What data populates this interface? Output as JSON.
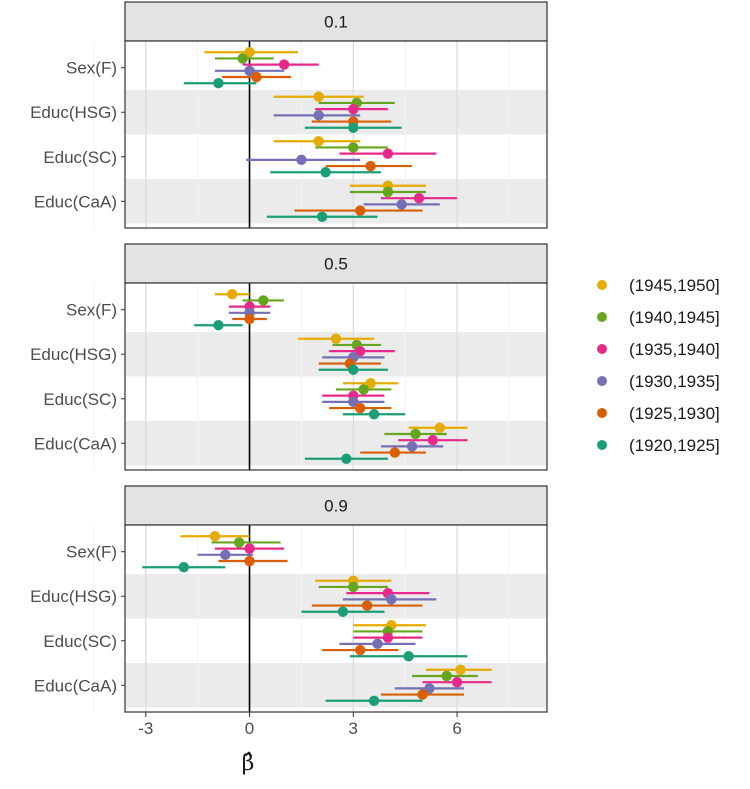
{
  "chart_data": {
    "type": "forest",
    "xlabel": "β̂",
    "x_ticks": [
      -3,
      0,
      3,
      6
    ],
    "xlim": [
      -3.6,
      8.6
    ],
    "categories": [
      "Sex(F)",
      "Educ(HSG)",
      "Educ(SC)",
      "Educ(CaA)"
    ],
    "legend": [
      {
        "label": "(1945,1950]",
        "color": "#e6ab02"
      },
      {
        "label": "(1940,1945]",
        "color": "#66a61e"
      },
      {
        "label": "(1935,1940]",
        "color": "#e7298a"
      },
      {
        "label": "(1930,1935]",
        "color": "#7570b3"
      },
      {
        "label": "(1925,1930]",
        "color": "#d95f02"
      },
      {
        "label": "(1920,1925]",
        "color": "#1b9e77"
      }
    ],
    "panels": [
      {
        "title": "0.1",
        "estimates": [
          [
            [
              0.0,
              -1.3,
              1.4
            ],
            [
              -0.2,
              -1.0,
              0.7
            ],
            [
              1.0,
              -0.2,
              2.0
            ],
            [
              0.0,
              -1.0,
              1.0
            ],
            [
              0.2,
              -0.8,
              1.2
            ],
            [
              -0.9,
              -1.9,
              0.2
            ]
          ],
          [
            [
              2.0,
              0.7,
              3.3
            ],
            [
              3.1,
              2.0,
              4.2
            ],
            [
              3.0,
              1.9,
              4.0
            ],
            [
              2.0,
              0.7,
              3.2
            ],
            [
              3.0,
              1.8,
              4.1
            ],
            [
              3.0,
              1.6,
              4.4
            ]
          ],
          [
            [
              2.0,
              0.7,
              3.2
            ],
            [
              3.0,
              1.9,
              4.0
            ],
            [
              4.0,
              2.6,
              5.4
            ],
            [
              1.5,
              -0.1,
              3.2
            ],
            [
              3.5,
              2.2,
              4.7
            ],
            [
              2.2,
              0.6,
              3.8
            ]
          ],
          [
            [
              4.0,
              2.9,
              5.1
            ],
            [
              4.0,
              2.9,
              5.1
            ],
            [
              4.9,
              3.8,
              6.0
            ],
            [
              4.4,
              3.3,
              5.5
            ],
            [
              3.2,
              1.3,
              5.0
            ],
            [
              2.1,
              0.5,
              3.7
            ]
          ]
        ]
      },
      {
        "title": "0.5",
        "estimates": [
          [
            [
              -0.5,
              -1.0,
              0.0
            ],
            [
              0.4,
              -0.2,
              1.0
            ],
            [
              0.0,
              -0.6,
              0.6
            ],
            [
              0.0,
              -0.6,
              0.6
            ],
            [
              0.0,
              -0.5,
              0.5
            ],
            [
              -0.9,
              -1.6,
              -0.2
            ]
          ],
          [
            [
              2.5,
              1.4,
              3.6
            ],
            [
              3.1,
              2.4,
              3.8
            ],
            [
              3.2,
              2.3,
              4.2
            ],
            [
              3.0,
              2.1,
              3.9
            ],
            [
              2.9,
              2.0,
              3.8
            ],
            [
              3.0,
              2.0,
              4.0
            ]
          ],
          [
            [
              3.5,
              2.7,
              4.3
            ],
            [
              3.3,
              2.5,
              4.1
            ],
            [
              3.0,
              2.1,
              3.9
            ],
            [
              3.0,
              2.1,
              3.9
            ],
            [
              3.2,
              2.3,
              4.1
            ],
            [
              3.6,
              2.7,
              4.5
            ]
          ],
          [
            [
              5.5,
              4.6,
              6.3
            ],
            [
              4.8,
              3.9,
              5.7
            ],
            [
              5.3,
              4.3,
              6.3
            ],
            [
              4.7,
              3.8,
              5.6
            ],
            [
              4.2,
              3.2,
              5.1
            ],
            [
              2.8,
              1.6,
              4.0
            ]
          ]
        ]
      },
      {
        "title": "0.9",
        "estimates": [
          [
            [
              -1.0,
              -2.0,
              0.0
            ],
            [
              -0.3,
              -1.1,
              0.9
            ],
            [
              0.0,
              -1.0,
              1.0
            ],
            [
              -0.7,
              -1.5,
              0.1
            ],
            [
              0.0,
              -0.9,
              1.1
            ],
            [
              -1.9,
              -3.1,
              -0.7
            ]
          ],
          [
            [
              3.0,
              1.9,
              4.1
            ],
            [
              3.0,
              2.0,
              4.0
            ],
            [
              4.0,
              2.8,
              5.2
            ],
            [
              4.1,
              2.7,
              5.4
            ],
            [
              3.4,
              1.8,
              5.0
            ],
            [
              2.7,
              1.5,
              3.9
            ]
          ],
          [
            [
              4.1,
              3.0,
              5.1
            ],
            [
              4.0,
              3.0,
              5.0
            ],
            [
              4.0,
              3.0,
              5.0
            ],
            [
              3.7,
              2.6,
              4.8
            ],
            [
              3.2,
              2.1,
              4.3
            ],
            [
              4.6,
              2.9,
              6.3
            ]
          ],
          [
            [
              6.1,
              5.1,
              7.0
            ],
            [
              5.7,
              4.7,
              6.6
            ],
            [
              6.0,
              5.0,
              7.0
            ],
            [
              5.2,
              4.2,
              6.2
            ],
            [
              5.0,
              3.8,
              6.2
            ],
            [
              3.6,
              2.2,
              5.0
            ]
          ]
        ]
      }
    ]
  }
}
